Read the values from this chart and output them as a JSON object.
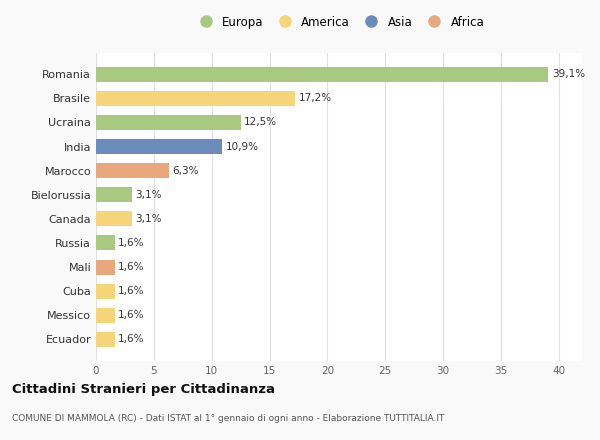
{
  "countries": [
    "Romania",
    "Brasile",
    "Ucraina",
    "India",
    "Marocco",
    "Bielorussia",
    "Canada",
    "Russia",
    "Mali",
    "Cuba",
    "Messico",
    "Ecuador"
  ],
  "values": [
    39.1,
    17.2,
    12.5,
    10.9,
    6.3,
    3.1,
    3.1,
    1.6,
    1.6,
    1.6,
    1.6,
    1.6
  ],
  "labels": [
    "39,1%",
    "17,2%",
    "12,5%",
    "10,9%",
    "6,3%",
    "3,1%",
    "3,1%",
    "1,6%",
    "1,6%",
    "1,6%",
    "1,6%",
    "1,6%"
  ],
  "continents": [
    "Europa",
    "America",
    "Europa",
    "Asia",
    "Africa",
    "Europa",
    "America",
    "Europa",
    "Africa",
    "America",
    "America",
    "America"
  ],
  "colors": {
    "Europa": "#a8c97f",
    "America": "#f5d47a",
    "Asia": "#6b8cba",
    "Africa": "#e8a87c"
  },
  "legend_order": [
    "Europa",
    "America",
    "Asia",
    "Africa"
  ],
  "title1": "Cittadini Stranieri per Cittadinanza",
  "title2": "COMUNE DI MAMMOLA (RC) - Dati ISTAT al 1° gennaio di ogni anno - Elaborazione TUTTITALIA.IT",
  "xlim": [
    0,
    42
  ],
  "xticks": [
    0,
    5,
    10,
    15,
    20,
    25,
    30,
    35,
    40
  ],
  "background_color": "#f9f9f9",
  "bar_background": "#ffffff",
  "grid_color": "#e0e0e0"
}
